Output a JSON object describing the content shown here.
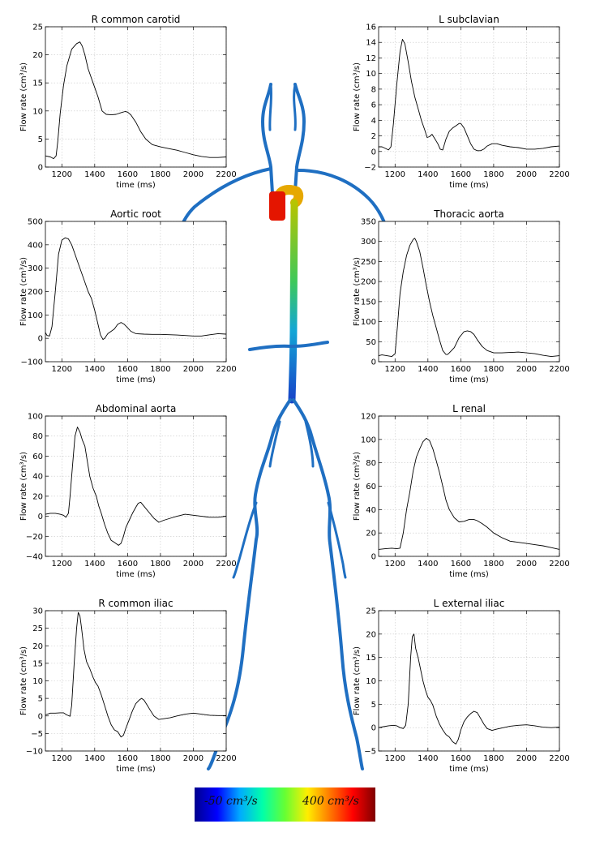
{
  "colorbar": {
    "min_label": "-50 cm³/s",
    "max_label": "400 cm³/s",
    "colors": [
      "#00008f",
      "#0000ff",
      "#00aaff",
      "#00ffaa",
      "#66ff33",
      "#ffee00",
      "#ff7700",
      "#ff0000",
      "#7f0000"
    ]
  },
  "artery_colors": {
    "low": "#1f6fc2",
    "arch": "#e6a800",
    "root": "#e41500",
    "aorta_top": "#b7c400",
    "aorta_mid": "#3ec85a",
    "aorta_low": "#12a6d6",
    "aorta_bottom": "#1844c8"
  },
  "chart_data": [
    {
      "type": "line",
      "title": "R common carotid",
      "xlabel": "time (ms)",
      "ylabel": "Flow rate (cm³/s)",
      "xlim": [
        1100,
        2200
      ],
      "ylim": [
        0,
        25
      ],
      "xticks": [
        1200,
        1400,
        1600,
        1800,
        2000,
        2200
      ],
      "yticks": [
        0,
        5,
        10,
        15,
        20,
        25
      ],
      "grid": true,
      "x": [
        1100,
        1130,
        1150,
        1165,
        1175,
        1190,
        1210,
        1230,
        1260,
        1290,
        1310,
        1325,
        1340,
        1360,
        1390,
        1420,
        1445,
        1470,
        1500,
        1530,
        1560,
        1585,
        1600,
        1620,
        1650,
        1680,
        1710,
        1750,
        1800,
        1850,
        1900,
        1950,
        2000,
        2050,
        2100,
        2150,
        2200
      ],
      "y": [
        2.0,
        1.8,
        1.5,
        2.0,
        4.5,
        9.5,
        14.5,
        18.0,
        21.0,
        22.0,
        22.3,
        21.5,
        20.0,
        17.5,
        15.0,
        12.5,
        10.0,
        9.4,
        9.3,
        9.4,
        9.7,
        9.9,
        9.8,
        9.3,
        8.0,
        6.3,
        5.0,
        4.0,
        3.6,
        3.3,
        3.0,
        2.6,
        2.2,
        1.9,
        1.7,
        1.7,
        1.8
      ]
    },
    {
      "type": "line",
      "title": "L subclavian",
      "xlabel": "time (ms)",
      "ylabel": "Flow rate (cm³/s)",
      "xlim": [
        1100,
        2200
      ],
      "ylim": [
        -2,
        16
      ],
      "xticks": [
        1200,
        1400,
        1600,
        1800,
        2000,
        2200
      ],
      "yticks": [
        -2,
        0,
        2,
        4,
        6,
        8,
        10,
        12,
        14,
        16
      ],
      "grid": true,
      "x": [
        1100,
        1120,
        1140,
        1160,
        1175,
        1190,
        1210,
        1230,
        1245,
        1260,
        1280,
        1300,
        1320,
        1340,
        1360,
        1380,
        1395,
        1410,
        1425,
        1440,
        1460,
        1475,
        1490,
        1510,
        1530,
        1550,
        1570,
        1590,
        1600,
        1620,
        1640,
        1660,
        1680,
        1700,
        1720,
        1740,
        1760,
        1790,
        1820,
        1850,
        1900,
        1950,
        2000,
        2050,
        2100,
        2150,
        2200
      ],
      "y": [
        0.6,
        0.6,
        0.4,
        0.2,
        0.6,
        3.5,
        8.5,
        12.8,
        14.4,
        13.8,
        11.5,
        9.0,
        7.0,
        5.5,
        4.0,
        2.8,
        1.8,
        1.9,
        2.2,
        1.7,
        1.0,
        0.3,
        0.2,
        1.6,
        2.6,
        3.0,
        3.3,
        3.6,
        3.6,
        3.0,
        2.0,
        1.0,
        0.3,
        0.1,
        0.1,
        0.3,
        0.7,
        1.0,
        1.0,
        0.8,
        0.6,
        0.5,
        0.3,
        0.3,
        0.4,
        0.6,
        0.7
      ]
    },
    {
      "type": "line",
      "title": "Aortic root",
      "xlabel": "time (ms)",
      "ylabel": "Flow rate (cm³/s)",
      "xlim": [
        1100,
        2200
      ],
      "ylim": [
        -100,
        500
      ],
      "xticks": [
        1200,
        1400,
        1600,
        1800,
        2000,
        2200
      ],
      "yticks": [
        -100,
        0,
        100,
        200,
        300,
        400,
        500
      ],
      "grid": true,
      "x": [
        1100,
        1110,
        1125,
        1140,
        1160,
        1180,
        1200,
        1220,
        1240,
        1260,
        1280,
        1300,
        1320,
        1340,
        1360,
        1380,
        1400,
        1420,
        1435,
        1450,
        1460,
        1480,
        1500,
        1520,
        1540,
        1560,
        1580,
        1600,
        1620,
        1650,
        1700,
        1750,
        1800,
        1900,
        2000,
        2050,
        2100,
        2150,
        2200
      ],
      "y": [
        25,
        12,
        10,
        50,
        200,
        360,
        420,
        430,
        425,
        400,
        360,
        320,
        280,
        240,
        200,
        170,
        120,
        60,
        15,
        -5,
        0,
        20,
        30,
        40,
        60,
        68,
        60,
        45,
        30,
        20,
        18,
        17,
        17,
        14,
        10,
        10,
        15,
        20,
        18
      ]
    },
    {
      "type": "line",
      "title": "Thoracic aorta",
      "xlabel": "time (ms)",
      "ylabel": "Flow rate (cm³/s)",
      "xlim": [
        1100,
        2200
      ],
      "ylim": [
        0,
        350
      ],
      "xticks": [
        1200,
        1400,
        1600,
        1800,
        2000,
        2200
      ],
      "yticks": [
        0,
        50,
        100,
        150,
        200,
        250,
        300,
        350
      ],
      "grid": true,
      "x": [
        1100,
        1120,
        1150,
        1180,
        1200,
        1215,
        1230,
        1250,
        1270,
        1290,
        1310,
        1320,
        1330,
        1350,
        1370,
        1390,
        1410,
        1430,
        1450,
        1470,
        1490,
        1510,
        1520,
        1530,
        1560,
        1590,
        1620,
        1640,
        1660,
        1680,
        1700,
        1730,
        1760,
        1800,
        1850,
        1900,
        1950,
        2000,
        2050,
        2100,
        2150,
        2200
      ],
      "y": [
        15,
        17,
        15,
        13,
        20,
        90,
        170,
        225,
        265,
        290,
        305,
        308,
        300,
        275,
        235,
        190,
        150,
        115,
        85,
        55,
        28,
        18,
        18,
        22,
        35,
        60,
        75,
        77,
        75,
        68,
        55,
        38,
        28,
        22,
        22,
        23,
        24,
        22,
        20,
        16,
        13,
        15
      ]
    },
    {
      "type": "line",
      "title": "Abdominal aorta",
      "xlabel": "time (ms)",
      "ylabel": "Flow rate (cm³/s)",
      "xlim": [
        1100,
        2200
      ],
      "ylim": [
        -40,
        100
      ],
      "xticks": [
        1200,
        1400,
        1600,
        1800,
        2000,
        2200
      ],
      "yticks": [
        -40,
        -20,
        0,
        20,
        40,
        60,
        80,
        100
      ],
      "grid": true,
      "x": [
        1100,
        1130,
        1160,
        1190,
        1210,
        1225,
        1240,
        1250,
        1265,
        1280,
        1295,
        1310,
        1325,
        1340,
        1355,
        1370,
        1390,
        1410,
        1425,
        1440,
        1460,
        1480,
        1500,
        1520,
        1545,
        1560,
        1575,
        1590,
        1610,
        1630,
        1650,
        1665,
        1680,
        1700,
        1730,
        1760,
        1790,
        1820,
        1860,
        1900,
        1950,
        2000,
        2050,
        2100,
        2150,
        2200
      ],
      "y": [
        2,
        3,
        3,
        2,
        1,
        -1,
        3,
        20,
        50,
        80,
        89,
        84,
        76,
        70,
        55,
        40,
        28,
        20,
        10,
        3,
        -8,
        -17,
        -24,
        -26,
        -29,
        -27,
        -20,
        -11,
        -4,
        3,
        9,
        13,
        14,
        10,
        4,
        -2,
        -6,
        -4,
        -2,
        0,
        2,
        1,
        0,
        -1,
        -1,
        0
      ]
    },
    {
      "type": "line",
      "title": "L renal",
      "xlabel": "time (ms)",
      "ylabel": "Flow rate (cm³/s)",
      "xlim": [
        1100,
        2200
      ],
      "ylim": [
        0,
        120
      ],
      "xticks": [
        1200,
        1400,
        1600,
        1800,
        2000,
        2200
      ],
      "yticks": [
        0,
        20,
        40,
        60,
        80,
        100,
        120
      ],
      "grid": true,
      "x": [
        1100,
        1140,
        1180,
        1210,
        1230,
        1250,
        1270,
        1290,
        1310,
        1330,
        1350,
        1370,
        1390,
        1410,
        1430,
        1450,
        1470,
        1490,
        1510,
        1530,
        1560,
        1590,
        1620,
        1650,
        1680,
        1700,
        1730,
        1760,
        1800,
        1850,
        1900,
        1950,
        2000,
        2050,
        2100,
        2150,
        2200
      ],
      "y": [
        6,
        6.5,
        7,
        6.5,
        7,
        20,
        40,
        55,
        73,
        85,
        92,
        98,
        101,
        99,
        92,
        82,
        72,
        60,
        48,
        40,
        33,
        29.5,
        30,
        31.5,
        31.5,
        30.5,
        28,
        25,
        20,
        16,
        13,
        12,
        11,
        10,
        9,
        7.5,
        6
      ]
    },
    {
      "type": "line",
      "title": "R common iliac",
      "xlabel": "time (ms)",
      "ylabel": "Flow rate (cm³/s)",
      "xlim": [
        1100,
        2200
      ],
      "ylim": [
        -10,
        30
      ],
      "xticks": [
        1200,
        1400,
        1600,
        1800,
        2000,
        2200
      ],
      "yticks": [
        -10,
        -5,
        0,
        5,
        10,
        15,
        20,
        25,
        30
      ],
      "grid": true,
      "x": [
        1100,
        1130,
        1160,
        1190,
        1210,
        1230,
        1250,
        1260,
        1275,
        1290,
        1300,
        1310,
        1320,
        1335,
        1350,
        1370,
        1390,
        1405,
        1420,
        1440,
        1460,
        1480,
        1500,
        1520,
        1540,
        1560,
        1575,
        1590,
        1610,
        1630,
        1650,
        1670,
        1685,
        1700,
        1720,
        1740,
        1760,
        1790,
        1820,
        1860,
        1900,
        1950,
        2000,
        2050,
        2100,
        2150,
        2200
      ],
      "y": [
        0.3,
        0.8,
        0.8,
        0.9,
        0.9,
        0.3,
        -0.1,
        3.0,
        15.0,
        25.0,
        29.5,
        28.5,
        25.0,
        19.0,
        15.5,
        13.5,
        11.0,
        9.5,
        8.5,
        6.0,
        3.0,
        0.0,
        -2.5,
        -4.0,
        -4.5,
        -6.0,
        -5.5,
        -3.5,
        -1.0,
        1.5,
        3.5,
        4.5,
        5.0,
        4.5,
        3.0,
        1.5,
        0.0,
        -1.0,
        -0.8,
        -0.5,
        0.0,
        0.5,
        0.8,
        0.5,
        0.2,
        0.1,
        0.1
      ]
    },
    {
      "type": "line",
      "title": "L external iliac",
      "xlabel": "time (ms)",
      "ylabel": "Flow rate (cm³/s)",
      "xlim": [
        1100,
        2200
      ],
      "ylim": [
        -5,
        25
      ],
      "xticks": [
        1200,
        1400,
        1600,
        1800,
        2000,
        2200
      ],
      "yticks": [
        -5,
        0,
        5,
        10,
        15,
        20,
        25
      ],
      "grid": true,
      "x": [
        1100,
        1130,
        1160,
        1190,
        1210,
        1230,
        1250,
        1265,
        1280,
        1295,
        1305,
        1315,
        1325,
        1340,
        1355,
        1370,
        1385,
        1400,
        1415,
        1430,
        1450,
        1470,
        1490,
        1510,
        1530,
        1550,
        1570,
        1585,
        1600,
        1620,
        1640,
        1660,
        1680,
        1700,
        1720,
        1740,
        1760,
        1790,
        1820,
        1860,
        1900,
        1950,
        2000,
        2050,
        2100,
        2150,
        2200
      ],
      "y": [
        0.0,
        0.2,
        0.4,
        0.5,
        0.4,
        0.0,
        -0.2,
        0.5,
        5.0,
        15.0,
        19.5,
        20.0,
        17.0,
        15.0,
        12.5,
        10.0,
        8.0,
        6.5,
        5.8,
        4.8,
        2.5,
        0.8,
        -0.5,
        -1.5,
        -2.0,
        -3.0,
        -3.5,
        -2.5,
        -0.5,
        1.3,
        2.3,
        3.0,
        3.5,
        3.2,
        2.0,
        0.8,
        -0.2,
        -0.6,
        -0.3,
        0.0,
        0.3,
        0.5,
        0.6,
        0.4,
        0.1,
        0.0,
        0.1
      ]
    }
  ]
}
